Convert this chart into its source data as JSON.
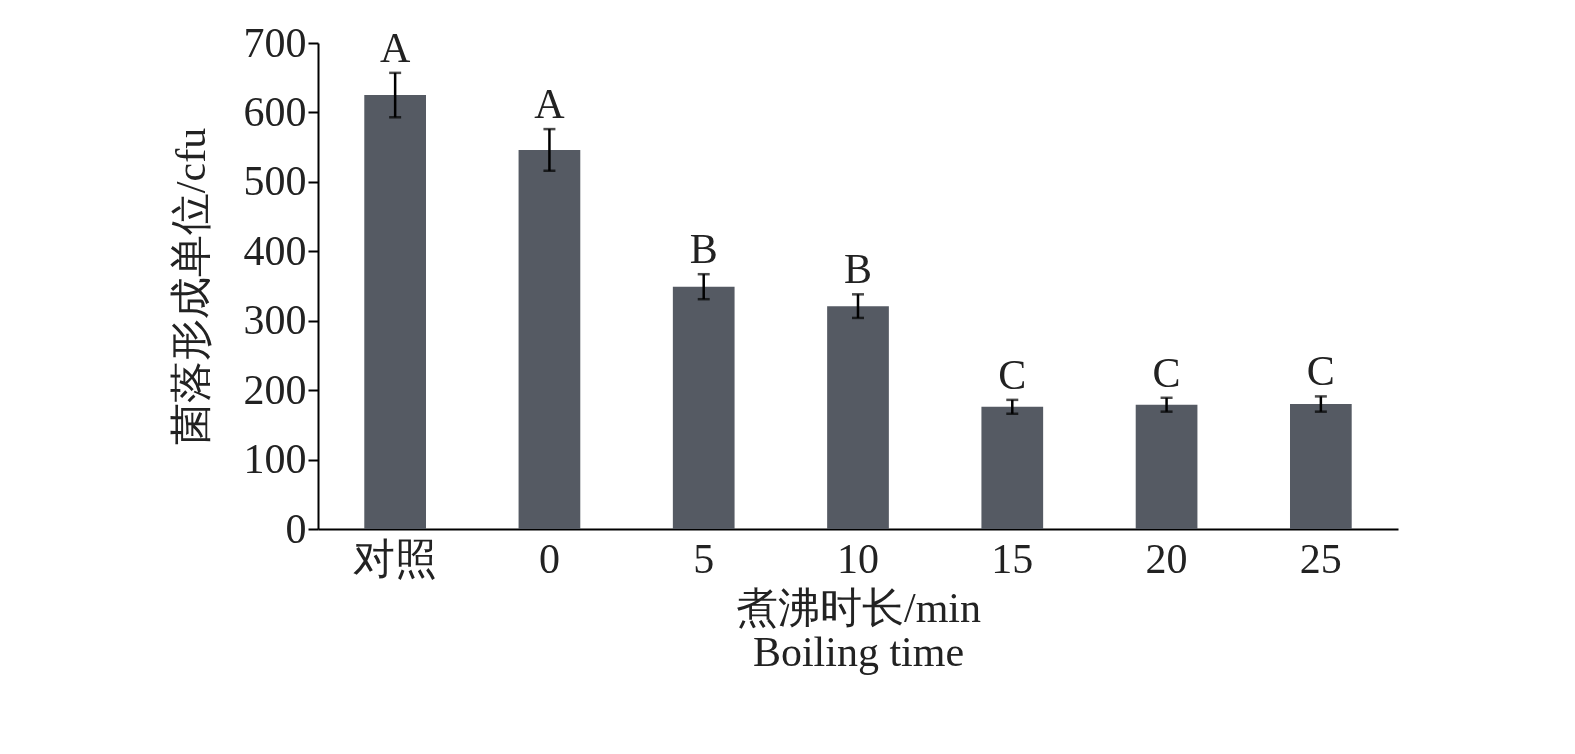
{
  "chart_data": {
    "type": "bar",
    "xlabel": "煮沸时长/min\nBoiling time",
    "ylabel": "菌落形成单位/cfu",
    "categories": [
      "对照",
      "0",
      "5",
      "10",
      "15",
      "20",
      "25"
    ],
    "values": [
      625,
      546,
      349,
      321,
      176,
      179,
      180
    ],
    "errors": [
      32,
      30,
      18,
      17,
      10,
      10,
      11
    ],
    "color": "#555a63",
    "ylim": [
      0,
      700
    ],
    "yticks": [
      0,
      100,
      200,
      300,
      400,
      500,
      600,
      700
    ],
    "grid": false,
    "annotations": [
      {
        "text": "A",
        "x": "对照",
        "y": 657
      },
      {
        "text": "A",
        "x": "0",
        "y": 576
      },
      {
        "text": "B",
        "x": "5",
        "y": 367
      },
      {
        "text": "B",
        "x": "10",
        "y": 338
      },
      {
        "text": "C",
        "x": "15",
        "y": 186
      },
      {
        "text": "C",
        "x": "20",
        "y": 189
      },
      {
        "text": "C",
        "x": "25",
        "y": 191
      }
    ]
  }
}
